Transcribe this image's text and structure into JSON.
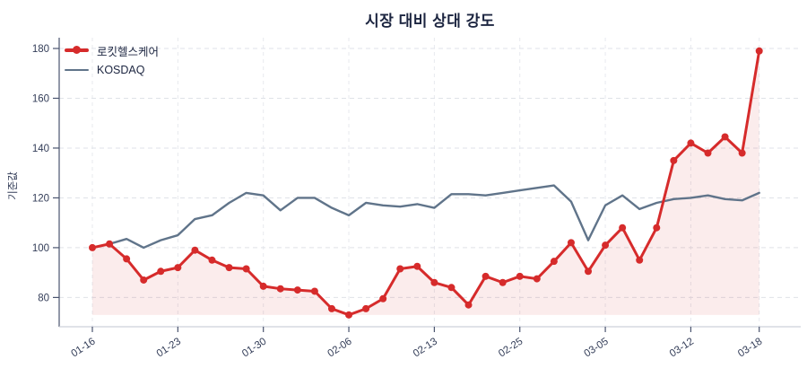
{
  "chart_data": {
    "type": "line",
    "title": "시장 대비 상대 강도",
    "ylabel": "기준값",
    "xlabel": "",
    "grid": true,
    "legend_position": "upper-left",
    "ylim": [
      68,
      186
    ],
    "y_ticks": [
      80,
      100,
      120,
      140,
      160,
      180
    ],
    "x_tick_indices": [
      0,
      5,
      10,
      15,
      20,
      25,
      30,
      35,
      39
    ],
    "x_tick_labels": [
      "01-16",
      "01-23",
      "01-30",
      "02-06",
      "02-13",
      "02-25",
      "03-05",
      "03-12",
      "03-18"
    ],
    "area_baseline": 73,
    "area_fill_color": "rgba(214,40,40,0.09)",
    "series": [
      {
        "name": "로킷헬스케어",
        "color": "#d62b2b",
        "marker": true,
        "area_fill": true,
        "values": [
          100,
          101.5,
          95.5,
          87,
          90.5,
          92,
          99,
          95,
          92,
          91.5,
          84.5,
          83.5,
          83,
          82.5,
          75.5,
          73,
          75.5,
          79.5,
          91.5,
          92.5,
          86,
          84,
          77,
          88.5,
          86,
          88.5,
          87.5,
          94.5,
          102,
          90.5,
          101,
          108,
          95,
          108,
          135,
          142,
          138,
          144.5,
          138,
          179
        ]
      },
      {
        "name": "KOSDAQ",
        "color": "#60748a",
        "marker": false,
        "area_fill": false,
        "values": [
          100,
          101.5,
          103.5,
          100,
          103,
          105,
          111.5,
          113,
          118,
          122,
          121,
          115,
          120,
          120,
          116,
          113,
          118,
          117,
          116.5,
          117.5,
          116,
          121.5,
          121.5,
          121,
          122,
          123,
          124,
          125,
          118.5,
          103,
          117,
          121,
          115.5,
          118,
          119.5,
          120,
          121,
          119.5,
          119,
          122
        ]
      }
    ],
    "colors": {
      "title_text": "#1c2540",
      "tick_text": "#333d58",
      "gridline": "#dfe2e8",
      "y_axis_line": "#49536e",
      "x_axis_line": "#cdd1da"
    }
  }
}
